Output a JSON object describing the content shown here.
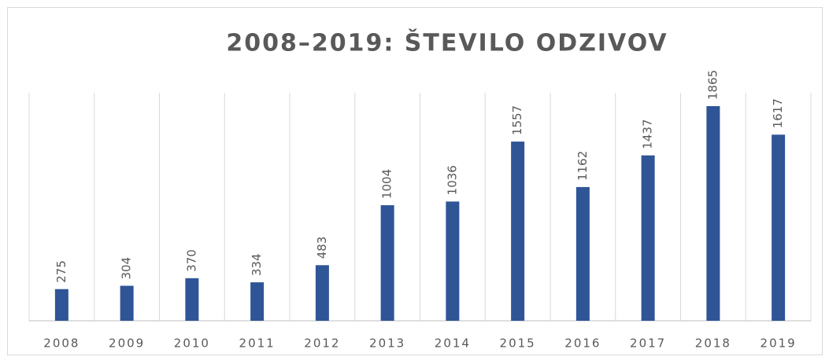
{
  "chart_data": {
    "type": "bar",
    "title": "2008–2019: ŠTEVILO ODZIVOV",
    "categories": [
      "2008",
      "2009",
      "2010",
      "2011",
      "2012",
      "2013",
      "2014",
      "2015",
      "2016",
      "2017",
      "2018",
      "2019"
    ],
    "values": [
      275,
      304,
      370,
      334,
      483,
      1004,
      1036,
      1557,
      1162,
      1437,
      1865,
      1617
    ],
    "color": "#2f5597"
  }
}
